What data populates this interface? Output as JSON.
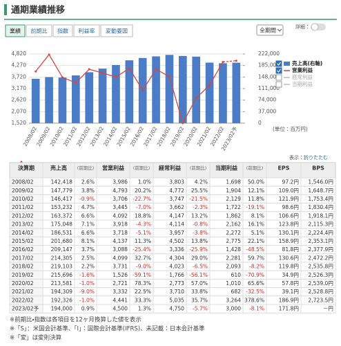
{
  "header": {
    "title": "通期業績推移"
  },
  "tabs": [
    "業績",
    "前期比",
    "指数",
    "利益率",
    "変動要因"
  ],
  "controls": {
    "period": "全期間",
    "detail": "詳細："
  },
  "chart_data": {
    "type": "combo",
    "categories": [
      "2008/02",
      "2009/02",
      "2010/02",
      "2011/02",
      "2012/02",
      "2013/02",
      "2014/02",
      "2015/02",
      "2016/02",
      "2017/02",
      "2018/02",
      "2019/02",
      "2020/02",
      "2021/02",
      "2022/02",
      "2023/02予"
    ],
    "series": [
      {
        "name": "売上高(右軸)",
        "kind": "bar",
        "axis": "y2",
        "color": "#4a7cc7",
        "values": [
          142418,
          147779,
          146417,
          153232,
          163372,
          175048,
          186531,
          201680,
          209147,
          214305,
          219103,
          215696,
          213581,
          194309,
          192326,
          194000
        ]
      },
      {
        "name": "営業利益",
        "kind": "line",
        "color": "#d9463f",
        "forecast_last": true,
        "values": [
          3986,
          4793,
          3706,
          3445,
          4092,
          3918,
          3718,
          4137,
          3088,
          4099,
          3731,
          1526,
          2721,
          3332,
          4441,
          4500
        ]
      },
      {
        "name": "経常利益",
        "visible": false
      },
      {
        "name": "当期利益",
        "visible": false
      }
    ],
    "ylim": [
      1520,
      4820
    ],
    "yticks": [
      {
        "value": 1520,
        "label": "1,520"
      },
      {
        "value": 2070,
        "label": "2,070"
      },
      {
        "value": 2620,
        "label": "2,620"
      },
      {
        "value": 3170,
        "label": "3,170"
      },
      {
        "value": 3720,
        "label": "3,720"
      },
      {
        "value": 4270,
        "label": "4,270"
      },
      {
        "value": 4820,
        "label": "4,820"
      }
    ],
    "y2lim": [
      0,
      222000
    ],
    "y2ticks": [
      0,
      {
        "value": 37000,
        "label": "37,000"
      },
      {
        "value": 74000,
        "label": "74,000"
      },
      {
        "value": 111000,
        "label": "111,000"
      },
      {
        "value": 148000,
        "label": "148,000"
      },
      {
        "value": 185000,
        "label": "185,000"
      },
      {
        "value": 222000,
        "label": "222,000"
      }
    ],
    "grid": true,
    "legend": "right",
    "unit": "(単位：百万円)"
  },
  "table": {
    "toggle_label": "表示：",
    "toggle_link": "折りたたむ",
    "header": [
      "決算期",
      "売上高",
      "(前期比)",
      "営業利益",
      "(前期比)",
      "経常利益",
      "(前期比)",
      "当期利益",
      "(前期比)",
      "EPS",
      "BPS"
    ],
    "rows": [
      [
        "2008/02",
        "142,418",
        "2.6%",
        "3,986",
        "1.0%",
        "3,803",
        "4.2%",
        "1,698",
        "50.0%",
        "97.2円",
        "1,546.0円"
      ],
      [
        "2009/02",
        "147,779",
        "3.8%",
        "4,793",
        "20.2%",
        "4,772",
        "25.5%",
        "1,904",
        "12.1%",
        "109.0円",
        "1,648.7円"
      ],
      [
        "2010/02",
        "146,417",
        "-0.9%",
        "3,706",
        "-22.7%",
        "3,747",
        "-21.5%",
        "2,129",
        "11.8%",
        "121.9円",
        "1,753.4円"
      ],
      [
        "2011/02",
        "153,232",
        "4.7%",
        "3,445",
        "-7.0%",
        "3,662",
        "-2.3%",
        "1,722",
        "-19.1%",
        "98.6円",
        "1,830.4円"
      ],
      [
        "2012/02",
        "163,372",
        "6.6%",
        "4,092",
        "18.8%",
        "4,147",
        "13.2%",
        "1,862",
        "8.1%",
        "106.6円",
        "1,918.1円"
      ],
      [
        "2013/02",
        "175,048",
        "7.1%",
        "3,918",
        "-4.3%",
        "4,114",
        "-0.8%",
        "2,162",
        "16.1%",
        "123.8円",
        "2,115.3円"
      ],
      [
        "2014/02",
        "186,531",
        "6.6%",
        "3,718",
        "-5.1%",
        "3,957",
        "-3.8%",
        "2,272",
        "5.1%",
        "130.1円",
        "2,224.4円"
      ],
      [
        "2015/02",
        "201,680",
        "8.1%",
        "4,137",
        "11.3%",
        "4,502",
        "13.8%",
        "2,775",
        "22.1%",
        "158.9円",
        "2,353.1円"
      ],
      [
        "2016/02",
        "209,147",
        "3.7%",
        "3,088",
        "-25.4%",
        "3,336",
        "-25.9%",
        "1,428",
        "-48.5%",
        "81.8円",
        "2,377.9円"
      ],
      [
        "2017/02",
        "214,305",
        "2.5%",
        "4,099",
        "32.7%",
        "4,304",
        "29.0%",
        "2,281",
        "59.7%",
        "130.6円",
        "2,472.2円"
      ],
      [
        "2018/02",
        "219,103",
        "2.2%",
        "3,731",
        "-9.0%",
        "4,023",
        "-6.5%",
        "2,093",
        "-8.2%",
        "119.8円",
        "2,535.8円"
      ],
      [
        "2019/02",
        "215,696",
        "-1.6%",
        "1,526",
        "-59.1%",
        "1,766",
        "-56.1%",
        "610",
        "-70.9%",
        "34.9円",
        "2,526.3円"
      ],
      [
        "2020/02",
        "213,581",
        "-1.0%",
        "2,721",
        "78.3%",
        "2,773",
        "57.0%",
        "1,010",
        "65.6%",
        "57.8円",
        "2,539.0円"
      ],
      [
        "2021/02",
        "194,309",
        "-9.0%",
        "3,332",
        "22.5%",
        "3,710",
        "33.8%",
        "682",
        "-32.5%",
        "39.1円",
        "2,528.8円"
      ],
      [
        "2022/02",
        "192,326",
        "-1.0%",
        "4,441",
        "33.3%",
        "5,035",
        "35.7%",
        "3,264",
        "378.6%",
        "186.9円",
        "2,723.5円"
      ],
      [
        "2023/02予",
        "194,000",
        "0.9%",
        "4,500",
        "1.3%",
        "4,750",
        "-5.7%",
        "3,000",
        "-8.1%",
        "171.8円",
        "－円"
      ]
    ]
  },
  "notes": [
    "※前期比・指数は各項目を12ヶ月換算した値を表示",
    "※「S」：米国会計基準、「I」：国際会計基準(IFRS)、未記載：日本会計基準",
    "※「変」は変則決算"
  ]
}
